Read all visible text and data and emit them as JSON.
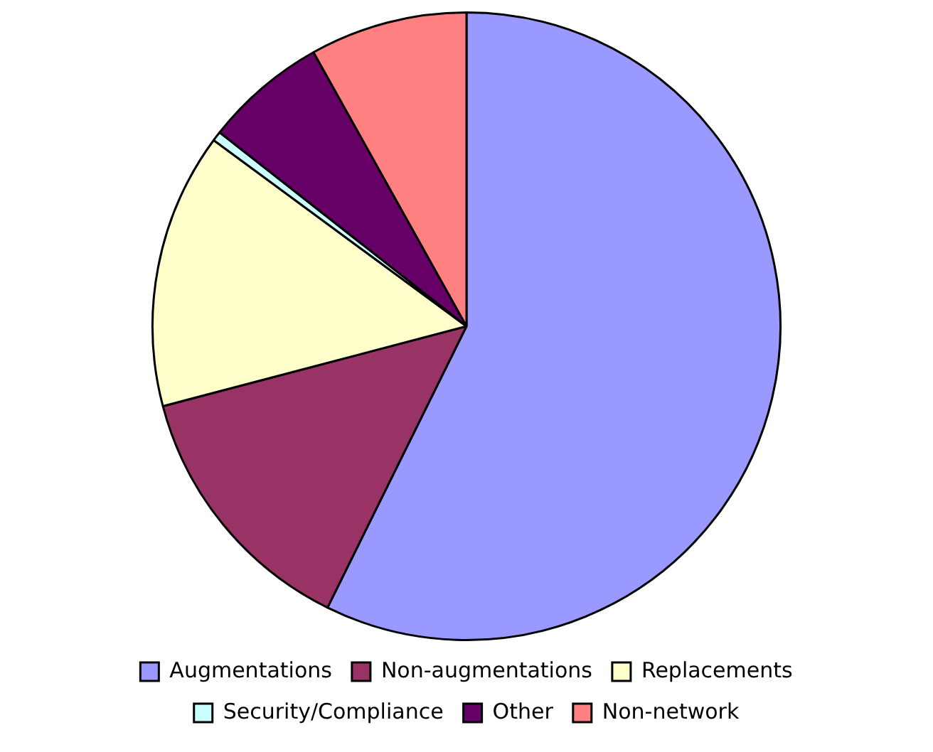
{
  "chart_data": {
    "type": "pie",
    "categories": [
      "Augmentations",
      "Non-augmentations",
      "Replacements",
      "Security/Compliance",
      "Other",
      "Non-network"
    ],
    "values": [
      57.3,
      13.6,
      14.2,
      0.5,
      6.3,
      8.1
    ],
    "colors": [
      "#9999ff",
      "#993366",
      "#ffffcc",
      "#ccffff",
      "#660066",
      "#ff8080"
    ],
    "legend": "bottom"
  }
}
